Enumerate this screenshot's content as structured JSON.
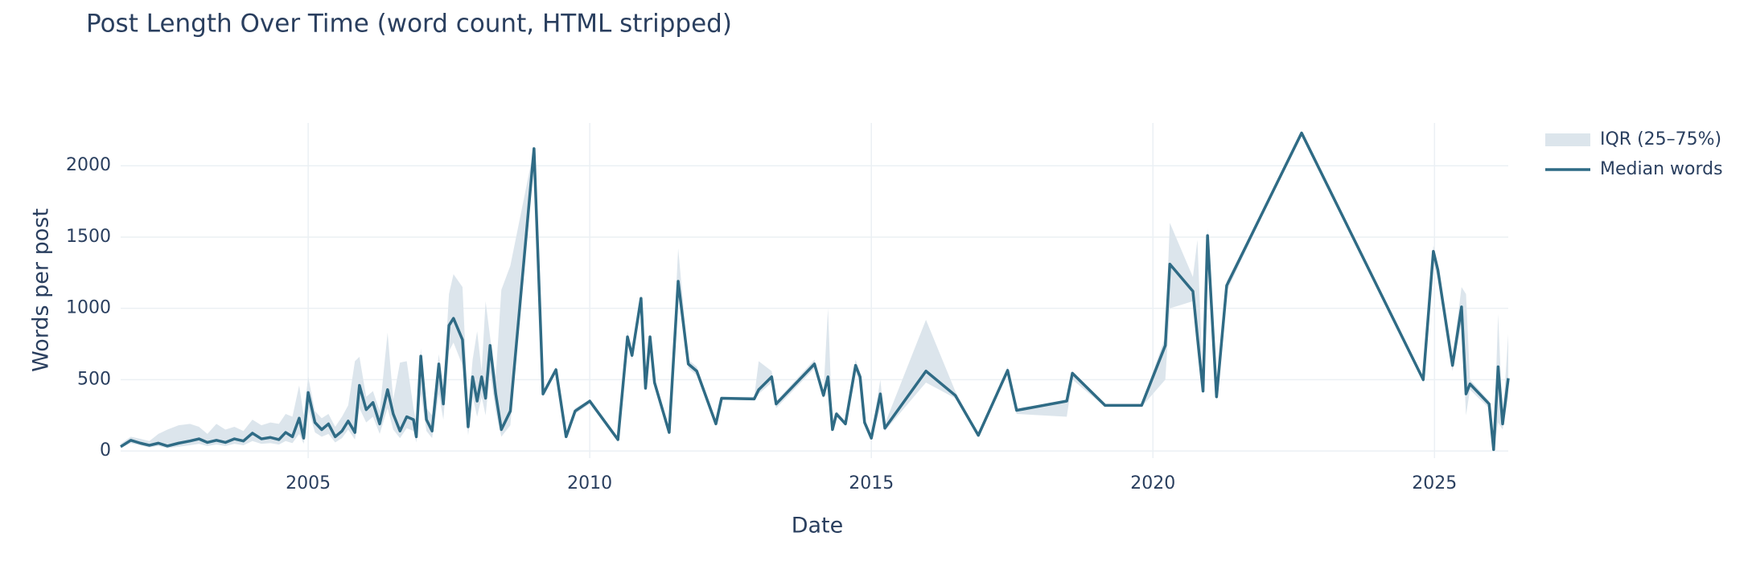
{
  "chart_data": {
    "type": "line_band",
    "title": "Post Length Over Time (word count, HTML stripped)",
    "x_label": "Date",
    "y_label": "Words per post",
    "xlim": [
      2001.67,
      2026.31
    ],
    "xticks": [
      2005,
      2010,
      2015,
      2020,
      2025
    ],
    "ylim": [
      -50,
      2300
    ],
    "yticks": [
      0,
      500,
      1000,
      1500,
      2000
    ],
    "grid": true,
    "legend": "right",
    "x": [
      2001.67,
      2001.85,
      2002.02,
      2002.18,
      2002.34,
      2002.5,
      2002.7,
      2002.9,
      2003.06,
      2003.21,
      2003.37,
      2003.53,
      2003.69,
      2003.85,
      2004.01,
      2004.17,
      2004.33,
      2004.48,
      2004.6,
      2004.72,
      2004.84,
      2004.92,
      2005.0,
      2005.12,
      2005.24,
      2005.36,
      2005.48,
      2005.6,
      2005.71,
      2005.83,
      2005.91,
      2006.03,
      2006.15,
      2006.27,
      2006.41,
      2006.51,
      2006.63,
      2006.75,
      2006.87,
      2006.92,
      2007.0,
      2007.1,
      2007.2,
      2007.32,
      2007.4,
      2007.5,
      2007.58,
      2007.74,
      2007.84,
      2007.92,
      2008.0,
      2008.08,
      2008.15,
      2008.23,
      2008.33,
      2008.43,
      2008.59,
      2009.01,
      2009.17,
      2009.4,
      2009.58,
      2009.74,
      2010.0,
      2010.5,
      2010.67,
      2010.75,
      2010.91,
      2010.99,
      2011.07,
      2011.15,
      2011.41,
      2011.57,
      2011.75,
      2011.9,
      2012.24,
      2012.34,
      2012.92,
      2013.0,
      2013.23,
      2013.31,
      2013.99,
      2014.15,
      2014.23,
      2014.31,
      2014.38,
      2014.54,
      2014.72,
      2014.8,
      2014.88,
      2015.0,
      2015.16,
      2015.24,
      2015.97,
      2016.49,
      2016.9,
      2017.42,
      2017.58,
      2018.47,
      2018.57,
      2019.15,
      2019.8,
      2020.22,
      2020.3,
      2020.71,
      2020.79,
      2020.89,
      2020.97,
      2021.13,
      2021.31,
      2022.64,
      2024.8,
      2024.98,
      2025.06,
      2025.32,
      2025.48,
      2025.56,
      2025.63,
      2025.97,
      2026.05,
      2026.13,
      2026.21,
      2026.31
    ],
    "series": [
      {
        "name": "IQR (25–75%)",
        "color": "#dce5ec",
        "lower": [
          20,
          55,
          40,
          25,
          35,
          20,
          30,
          40,
          50,
          35,
          45,
          35,
          50,
          40,
          70,
          50,
          55,
          45,
          70,
          55,
          120,
          50,
          300,
          130,
          100,
          120,
          60,
          90,
          150,
          80,
          300,
          200,
          240,
          120,
          300,
          150,
          90,
          160,
          140,
          60,
          400,
          140,
          90,
          400,
          220,
          700,
          760,
          600,
          110,
          380,
          240,
          380,
          250,
          550,
          280,
          100,
          180,
          2120,
          380,
          550,
          90,
          260,
          330,
          70,
          760,
          640,
          1020,
          420,
          770,
          460,
          120,
          1100,
          580,
          530,
          180,
          360,
          355,
          400,
          480,
          300,
          580,
          370,
          480,
          140,
          240,
          180,
          560,
          480,
          180,
          80,
          300,
          140,
          480,
          370,
          100,
          540,
          260,
          240,
          500,
          310,
          310,
          500,
          1000,
          1050,
          700,
          400,
          1450,
          360,
          1120,
          2230,
          480,
          1330,
          1200,
          560,
          900,
          250,
          430,
          300,
          10,
          200,
          150,
          380
        ],
        "upper": [
          50,
          100,
          85,
          70,
          120,
          150,
          180,
          190,
          170,
          120,
          190,
          150,
          170,
          140,
          220,
          180,
          200,
          190,
          260,
          240,
          460,
          250,
          520,
          280,
          230,
          260,
          170,
          240,
          320,
          630,
          660,
          380,
          420,
          280,
          830,
          360,
          620,
          630,
          300,
          200,
          720,
          300,
          250,
          680,
          420,
          1100,
          1240,
          1150,
          280,
          640,
          840,
          560,
          1050,
          800,
          520,
          1130,
          1300,
          2120,
          420,
          590,
          110,
          300,
          360,
          90,
          840,
          700,
          1090,
          470,
          820,
          500,
          150,
          1420,
          640,
          590,
          210,
          380,
          380,
          630,
          560,
          350,
          640,
          410,
          1000,
          170,
          280,
          210,
          640,
          550,
          230,
          110,
          500,
          190,
          920,
          420,
          120,
          590,
          300,
          350,
          560,
          330,
          330,
          800,
          1600,
          1220,
          1480,
          460,
          1560,
          400,
          1190,
          2230,
          520,
          1440,
          1300,
          640,
          1150,
          1100,
          500,
          350,
          20,
          960,
          220,
          820
        ]
      },
      {
        "name": "Median words",
        "color": "#2f6b85",
        "values": [
          30,
          75,
          55,
          40,
          55,
          35,
          55,
          70,
          85,
          60,
          75,
          60,
          85,
          70,
          125,
          85,
          95,
          80,
          130,
          100,
          230,
          90,
          410,
          200,
          150,
          190,
          100,
          140,
          210,
          130,
          460,
          290,
          340,
          190,
          430,
          260,
          140,
          240,
          220,
          100,
          665,
          220,
          140,
          610,
          330,
          880,
          930,
          780,
          170,
          520,
          350,
          520,
          370,
          740,
          400,
          150,
          280,
          2120,
          400,
          570,
          100,
          280,
          350,
          80,
          800,
          670,
          1070,
          440,
          800,
          480,
          130,
          1190,
          610,
          560,
          190,
          370,
          365,
          430,
          520,
          330,
          610,
          390,
          520,
          150,
          260,
          190,
          600,
          520,
          200,
          90,
          400,
          160,
          560,
          390,
          110,
          565,
          285,
          350,
          545,
          320,
          320,
          740,
          1310,
          1120,
          800,
          420,
          1510,
          380,
          1160,
          2230,
          500,
          1400,
          1270,
          600,
          1010,
          400,
          470,
          330,
          10,
          590,
          190,
          510
        ]
      }
    ]
  }
}
